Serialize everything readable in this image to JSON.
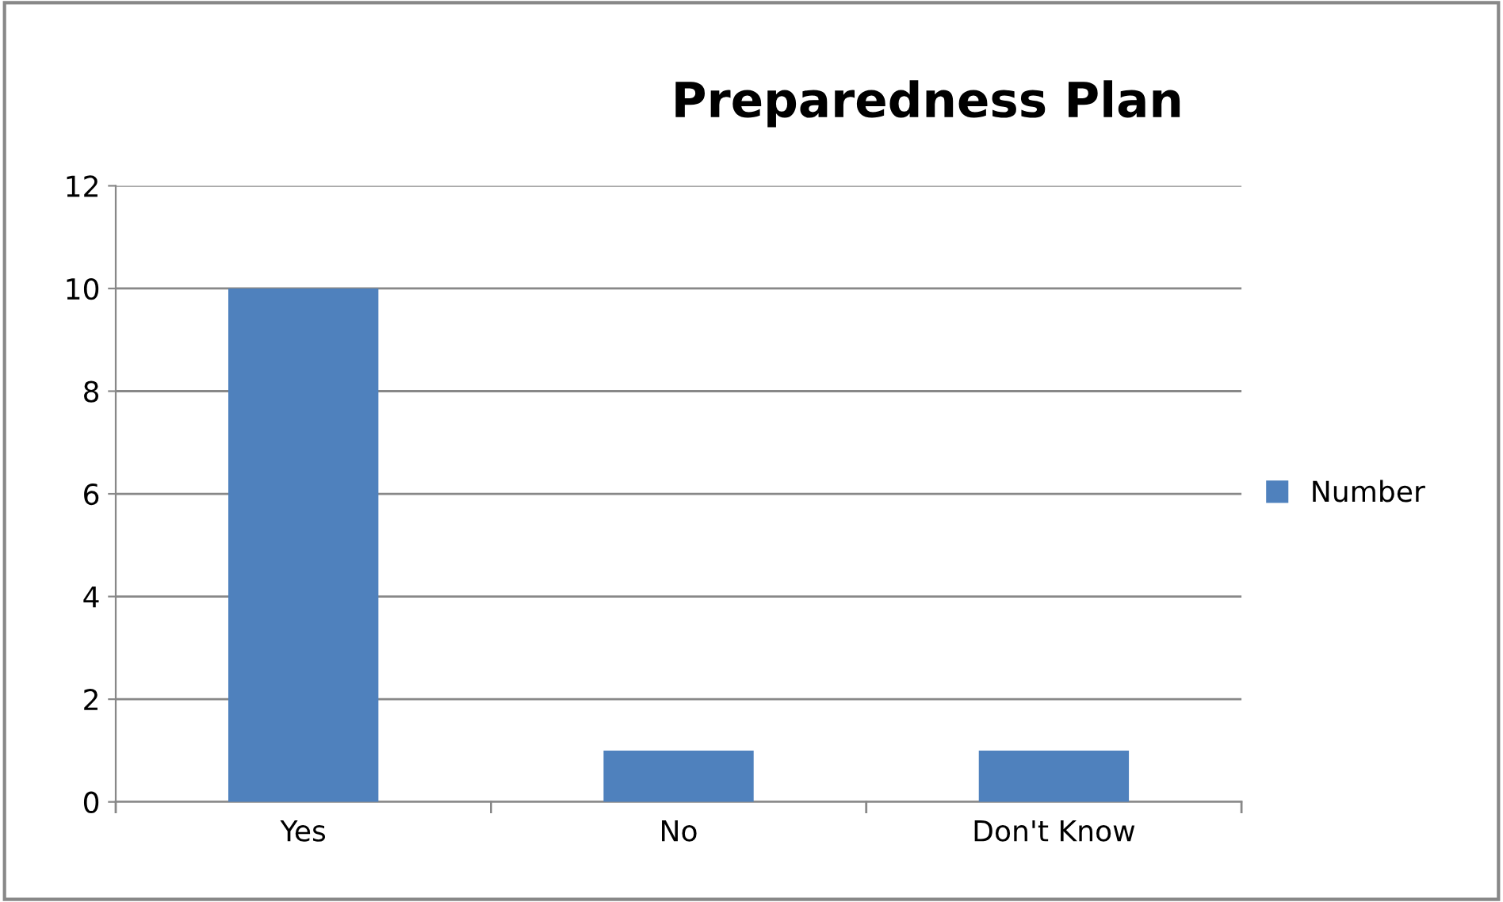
{
  "chart_data": {
    "type": "bar",
    "title": "Preparedness Plan",
    "categories": [
      "Yes",
      "No",
      "Don't Know"
    ],
    "series": [
      {
        "name": "Number",
        "color": "#4f81bd",
        "values": [
          10,
          1,
          1
        ]
      }
    ],
    "ylim": [
      0,
      12
    ],
    "yticks": [
      0,
      2,
      4,
      6,
      8,
      10,
      12
    ],
    "grid": "y",
    "legend": "right"
  }
}
